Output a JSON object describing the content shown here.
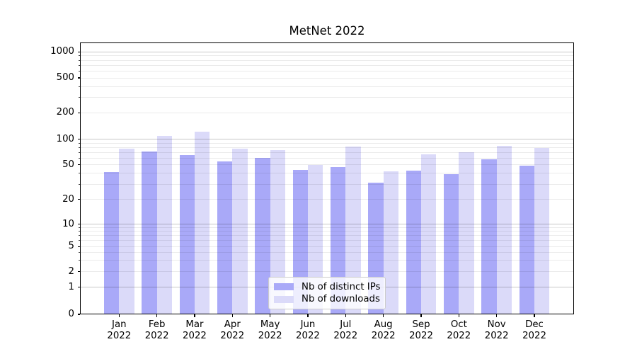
{
  "chart_data": {
    "type": "bar",
    "title": "MetNet 2022",
    "categories": [
      "Jan",
      "Feb",
      "Mar",
      "Apr",
      "May",
      "Jun",
      "Jul",
      "Aug",
      "Sep",
      "Oct",
      "Nov",
      "Dec"
    ],
    "category_year": "2022",
    "series": [
      {
        "name": "Nb of distinct IPs",
        "color": "#a9a9f8",
        "values": [
          41,
          71,
          65,
          55,
          60,
          44,
          47,
          31,
          43,
          39,
          58,
          49
        ]
      },
      {
        "name": "Nb of downloads",
        "color": "#dbdaf9",
        "values": [
          78,
          109,
          121,
          77,
          75,
          50,
          82,
          42,
          66,
          70,
          84,
          79
        ]
      }
    ],
    "y_axis": {
      "scale": "symlog",
      "ticks": [
        0,
        1,
        2,
        5,
        10,
        20,
        50,
        100,
        200,
        500,
        1000
      ],
      "range": [
        0,
        1000
      ]
    },
    "x_axis": {
      "tick_label_format": "month newline year"
    },
    "legend": {
      "position": "lower center",
      "entries": [
        "Nb of distinct IPs",
        "Nb of downloads"
      ]
    },
    "grid": {
      "major": true,
      "minor": true
    },
    "colors": {
      "background": "#ffffff",
      "grid_major": "#c6c6c6",
      "grid_minor": "#ececec",
      "spine": "#000000",
      "text": "#000000"
    }
  }
}
